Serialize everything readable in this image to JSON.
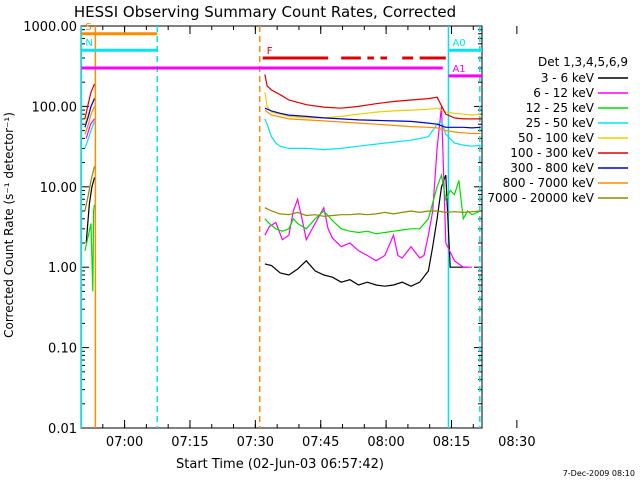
{
  "chart_data": {
    "type": "line",
    "title": "HESSI Observing Summary Count Rates, Corrected",
    "xlabel": "Start Time (02-Jun-03 06:57:42)",
    "ylabel": "Corrected Count Rate (s⁻¹ detector⁻¹)",
    "footer": "7-Dec-2009 08:10",
    "x_range": [
      -7.7,
      84.3
    ],
    "x_ticks": [
      {
        "label": "07:00",
        "value": 2.3
      },
      {
        "label": "07:15",
        "value": 17.3
      },
      {
        "label": "07:30",
        "value": 32.3
      },
      {
        "label": "07:45",
        "value": 47.3
      },
      {
        "label": "08:00",
        "value": 62.3
      },
      {
        "label": "08:15",
        "value": 77.3
      },
      {
        "label": "08:30",
        "value": 92.3
      }
    ],
    "y_scale": "log",
    "y_range": [
      0.01,
      1000
    ],
    "y_ticks": [
      "1000.00",
      "100.00",
      "10.00",
      "1.00",
      "0.10",
      "0.01"
    ],
    "legend": {
      "position": "right",
      "header": "Det 1,3,4,5,6,9",
      "entries": [
        {
          "label": "3 - 6 keV",
          "color": "#000000"
        },
        {
          "label": "6 - 12 keV",
          "color": "#ff00ff"
        },
        {
          "label": "12 - 25 keV",
          "color": "#00dd00"
        },
        {
          "label": "25 - 50 keV",
          "color": "#00e5ee"
        },
        {
          "label": "50 - 100 keV",
          "color": "#e8d000"
        },
        {
          "label": "100 - 300 keV",
          "color": "#dd0000"
        },
        {
          "label": "300 - 800 keV",
          "color": "#0000cc"
        },
        {
          "label": "800 - 7000 keV",
          "color": "#ff8c00"
        },
        {
          "label": "7000 - 20000 keV",
          "color": "#8b8b00"
        }
      ]
    },
    "series": [
      {
        "name": "3 - 6 keV",
        "points": [
          [
            -6.5,
            2
          ],
          [
            -5.8,
            6
          ],
          [
            -5.2,
            10
          ],
          [
            -4.6,
            13
          ],
          [
            34.5,
            1.1
          ],
          [
            36,
            1.05
          ],
          [
            38,
            0.85
          ],
          [
            40,
            0.8
          ],
          [
            42,
            0.95
          ],
          [
            44,
            1.2
          ],
          [
            46,
            0.9
          ],
          [
            48,
            0.8
          ],
          [
            50,
            0.75
          ],
          [
            52,
            0.65
          ],
          [
            54,
            0.7
          ],
          [
            56,
            0.6
          ],
          [
            58,
            0.65
          ],
          [
            60,
            0.6
          ],
          [
            62,
            0.58
          ],
          [
            64,
            0.6
          ],
          [
            66,
            0.65
          ],
          [
            68,
            0.58
          ],
          [
            70,
            0.65
          ],
          [
            72,
            0.9
          ],
          [
            73,
            1.8
          ],
          [
            74,
            4
          ],
          [
            75,
            10
          ],
          [
            76,
            14
          ],
          [
            77,
            1
          ],
          [
            79,
            1
          ],
          [
            81,
            1
          ]
        ]
      },
      {
        "name": "6 - 12 keV",
        "points": [
          [
            -6.5,
            40
          ],
          [
            -5.5,
            60
          ],
          [
            -4.6,
            70
          ],
          [
            34.5,
            2.5
          ],
          [
            35.5,
            3.2
          ],
          [
            37,
            3.6
          ],
          [
            38.5,
            2.2
          ],
          [
            40,
            2.5
          ],
          [
            41,
            5
          ],
          [
            42,
            7
          ],
          [
            43,
            4
          ],
          [
            44,
            2.2
          ],
          [
            46,
            3.5
          ],
          [
            48,
            5.5
          ],
          [
            49,
            3
          ],
          [
            50,
            2.3
          ],
          [
            52,
            1.8
          ],
          [
            54,
            2
          ],
          [
            56,
            1.6
          ],
          [
            58,
            1.4
          ],
          [
            60,
            1.2
          ],
          [
            62,
            1.4
          ],
          [
            64,
            2.5
          ],
          [
            65,
            1.4
          ],
          [
            66,
            1.3
          ],
          [
            68,
            1.8
          ],
          [
            70,
            1.3
          ],
          [
            71,
            1.4
          ],
          [
            72,
            2.5
          ],
          [
            73,
            5
          ],
          [
            74,
            30
          ],
          [
            75,
            100
          ],
          [
            76,
            2
          ],
          [
            78,
            1.2
          ],
          [
            80,
            1
          ],
          [
            82,
            1
          ]
        ]
      },
      {
        "name": "12 - 25 keV",
        "points": [
          [
            -6.8,
            1.6
          ],
          [
            -6,
            2.5
          ],
          [
            -5.4,
            3.5
          ],
          [
            -5,
            0.5
          ],
          [
            -4.8,
            5
          ],
          [
            -4.6,
            6
          ],
          [
            34.5,
            4
          ],
          [
            35.5,
            3.5
          ],
          [
            37,
            3
          ],
          [
            38.5,
            2.8
          ],
          [
            40,
            3
          ],
          [
            41,
            4
          ],
          [
            42,
            3.5
          ],
          [
            44,
            3
          ],
          [
            46,
            4
          ],
          [
            48,
            5
          ],
          [
            50,
            3.8
          ],
          [
            52,
            3
          ],
          [
            54,
            2.8
          ],
          [
            56,
            2.7
          ],
          [
            58,
            2.8
          ],
          [
            60,
            2.6
          ],
          [
            62,
            2.7
          ],
          [
            64,
            2.8
          ],
          [
            66,
            2.9
          ],
          [
            68,
            3
          ],
          [
            70,
            3
          ],
          [
            72,
            4
          ],
          [
            74,
            10
          ],
          [
            75,
            14
          ],
          [
            76,
            7
          ],
          [
            77,
            9
          ],
          [
            78,
            8
          ],
          [
            79,
            12
          ],
          [
            80,
            4
          ],
          [
            81,
            5
          ],
          [
            82,
            4.5
          ],
          [
            84,
            5
          ]
        ]
      },
      {
        "name": "25 - 50 keV",
        "points": [
          [
            -6.8,
            30
          ],
          [
            -6,
            40
          ],
          [
            -5.4,
            50
          ],
          [
            -4.6,
            65
          ],
          [
            34.5,
            70
          ],
          [
            35,
            60
          ],
          [
            36,
            42
          ],
          [
            37,
            35
          ],
          [
            38,
            32
          ],
          [
            40,
            30
          ],
          [
            44,
            30
          ],
          [
            48,
            29
          ],
          [
            52,
            30
          ],
          [
            56,
            32
          ],
          [
            60,
            34
          ],
          [
            64,
            36
          ],
          [
            68,
            38
          ],
          [
            72,
            42
          ],
          [
            74,
            60
          ],
          [
            75,
            65
          ],
          [
            76,
            45
          ],
          [
            78,
            35
          ],
          [
            80,
            33
          ],
          [
            82,
            32
          ],
          [
            84,
            33
          ]
        ]
      },
      {
        "name": "50 - 100 keV",
        "points": [
          [
            -6.8,
            60
          ],
          [
            -6,
            80
          ],
          [
            -5.4,
            100
          ],
          [
            -4.6,
            130
          ],
          [
            34.5,
            150
          ],
          [
            35,
            100
          ],
          [
            36,
            85
          ],
          [
            38,
            80
          ],
          [
            40,
            75
          ],
          [
            44,
            72
          ],
          [
            48,
            72
          ],
          [
            52,
            75
          ],
          [
            56,
            80
          ],
          [
            60,
            85
          ],
          [
            64,
            88
          ],
          [
            68,
            90
          ],
          [
            72,
            92
          ],
          [
            74,
            95
          ],
          [
            76,
            85
          ],
          [
            78,
            82
          ],
          [
            80,
            80
          ],
          [
            82,
            78
          ],
          [
            84,
            80
          ]
        ]
      },
      {
        "name": "100 - 300 keV",
        "points": [
          [
            -6.8,
            70
          ],
          [
            -6,
            110
          ],
          [
            -5.4,
            150
          ],
          [
            -4.6,
            190
          ],
          [
            34.5,
            250
          ],
          [
            35,
            180
          ],
          [
            36,
            160
          ],
          [
            38,
            140
          ],
          [
            40,
            120
          ],
          [
            44,
            105
          ],
          [
            48,
            98
          ],
          [
            52,
            95
          ],
          [
            56,
            100
          ],
          [
            60,
            108
          ],
          [
            64,
            115
          ],
          [
            68,
            120
          ],
          [
            72,
            125
          ],
          [
            74,
            130
          ],
          [
            76,
            80
          ],
          [
            78,
            72
          ],
          [
            80,
            70
          ],
          [
            82,
            70
          ],
          [
            84,
            70
          ]
        ]
      },
      {
        "name": "300 - 800 keV",
        "points": [
          [
            -6.8,
            55
          ],
          [
            -6,
            75
          ],
          [
            -5.4,
            100
          ],
          [
            -4.6,
            125
          ],
          [
            34.5,
            95
          ],
          [
            36,
            88
          ],
          [
            38,
            82
          ],
          [
            40,
            78
          ],
          [
            44,
            75
          ],
          [
            48,
            72
          ],
          [
            52,
            70
          ],
          [
            56,
            68
          ],
          [
            60,
            67
          ],
          [
            64,
            66
          ],
          [
            68,
            65
          ],
          [
            72,
            62
          ],
          [
            74,
            60
          ],
          [
            76,
            55
          ],
          [
            78,
            55
          ],
          [
            80,
            55
          ],
          [
            82,
            54
          ],
          [
            84,
            55
          ]
        ]
      },
      {
        "name": "800 - 7000 keV",
        "points": [
          [
            -6.8,
            45
          ],
          [
            -6,
            60
          ],
          [
            -5.4,
            80
          ],
          [
            -4.6,
            100
          ],
          [
            34.5,
            90
          ],
          [
            36,
            78
          ],
          [
            38,
            74
          ],
          [
            40,
            70
          ],
          [
            44,
            68
          ],
          [
            48,
            66
          ],
          [
            52,
            64
          ],
          [
            56,
            62
          ],
          [
            60,
            60
          ],
          [
            64,
            58
          ],
          [
            68,
            56
          ],
          [
            72,
            55
          ],
          [
            74,
            54
          ],
          [
            76,
            50
          ],
          [
            78,
            48
          ],
          [
            80,
            47
          ],
          [
            82,
            46
          ],
          [
            84,
            46
          ]
        ]
      },
      {
        "name": "7000 - 20000 keV",
        "points": [
          [
            -6.8,
            5
          ],
          [
            -6,
            8
          ],
          [
            -5.4,
            12
          ],
          [
            -4.6,
            18
          ],
          [
            34.5,
            5.5
          ],
          [
            36,
            5
          ],
          [
            38,
            4.6
          ],
          [
            40,
            4.5
          ],
          [
            42,
            4.8
          ],
          [
            44,
            4.4
          ],
          [
            46,
            4.5
          ],
          [
            48,
            4.3
          ],
          [
            50,
            4.4
          ],
          [
            52,
            4.5
          ],
          [
            54,
            4.5
          ],
          [
            56,
            4.6
          ],
          [
            58,
            4.5
          ],
          [
            60,
            4.6
          ],
          [
            62,
            4.8
          ],
          [
            64,
            4.6
          ],
          [
            66,
            4.8
          ],
          [
            68,
            5
          ],
          [
            70,
            4.8
          ],
          [
            72,
            5
          ],
          [
            74,
            5
          ],
          [
            76,
            4.8
          ],
          [
            78,
            4.9
          ],
          [
            80,
            4.8
          ],
          [
            82,
            4.9
          ],
          [
            84,
            5
          ]
        ]
      }
    ],
    "vertical_lines": [
      {
        "x": -7.6,
        "color": "#00e5ee",
        "style": "solid"
      },
      {
        "x": -4.4,
        "color": "#ff8c00",
        "style": "solid"
      },
      {
        "x": 9.8,
        "color": "#00e5ee",
        "style": "dashed"
      },
      {
        "x": 33.3,
        "color": "#ff8c00",
        "style": "dashed"
      },
      {
        "x": 76.6,
        "color": "#00e5ee",
        "style": "solid"
      },
      {
        "x": 83.8,
        "color": "#00e5ee",
        "style": "dashed"
      }
    ],
    "state_bars": [
      {
        "label": "S",
        "color": "#ff8c00",
        "y": 800,
        "style": "solid",
        "segments": [
          [
            -7.6,
            9.8
          ]
        ]
      },
      {
        "label": "N",
        "color": "#00e5ee",
        "y": 500,
        "style": "solid",
        "segments": [
          [
            -7.6,
            9.8
          ]
        ]
      },
      {
        "label": "F",
        "color": "#dd0000",
        "y": 400,
        "style": "dashed",
        "segments": [
          [
            34.0,
            49.0
          ],
          [
            52.0,
            56.5
          ],
          [
            58.0,
            59.5
          ],
          [
            61.0,
            62.5
          ],
          [
            66.0,
            68.5
          ],
          [
            70.0,
            76.0
          ]
        ]
      },
      {
        "label": "",
        "color": "#ff00ff",
        "y": 300,
        "style": "solid",
        "segments": [
          [
            -7.6,
            75.3
          ]
        ]
      },
      {
        "label": "A1",
        "color": "#ff00ff",
        "y": 240,
        "style": "solid",
        "segments": [
          [
            76.6,
            84.3
          ]
        ]
      },
      {
        "label": "A0",
        "color": "#00e5ee",
        "y": 500,
        "style": "solid",
        "segments": [
          [
            76.6,
            84.3
          ]
        ]
      }
    ]
  }
}
